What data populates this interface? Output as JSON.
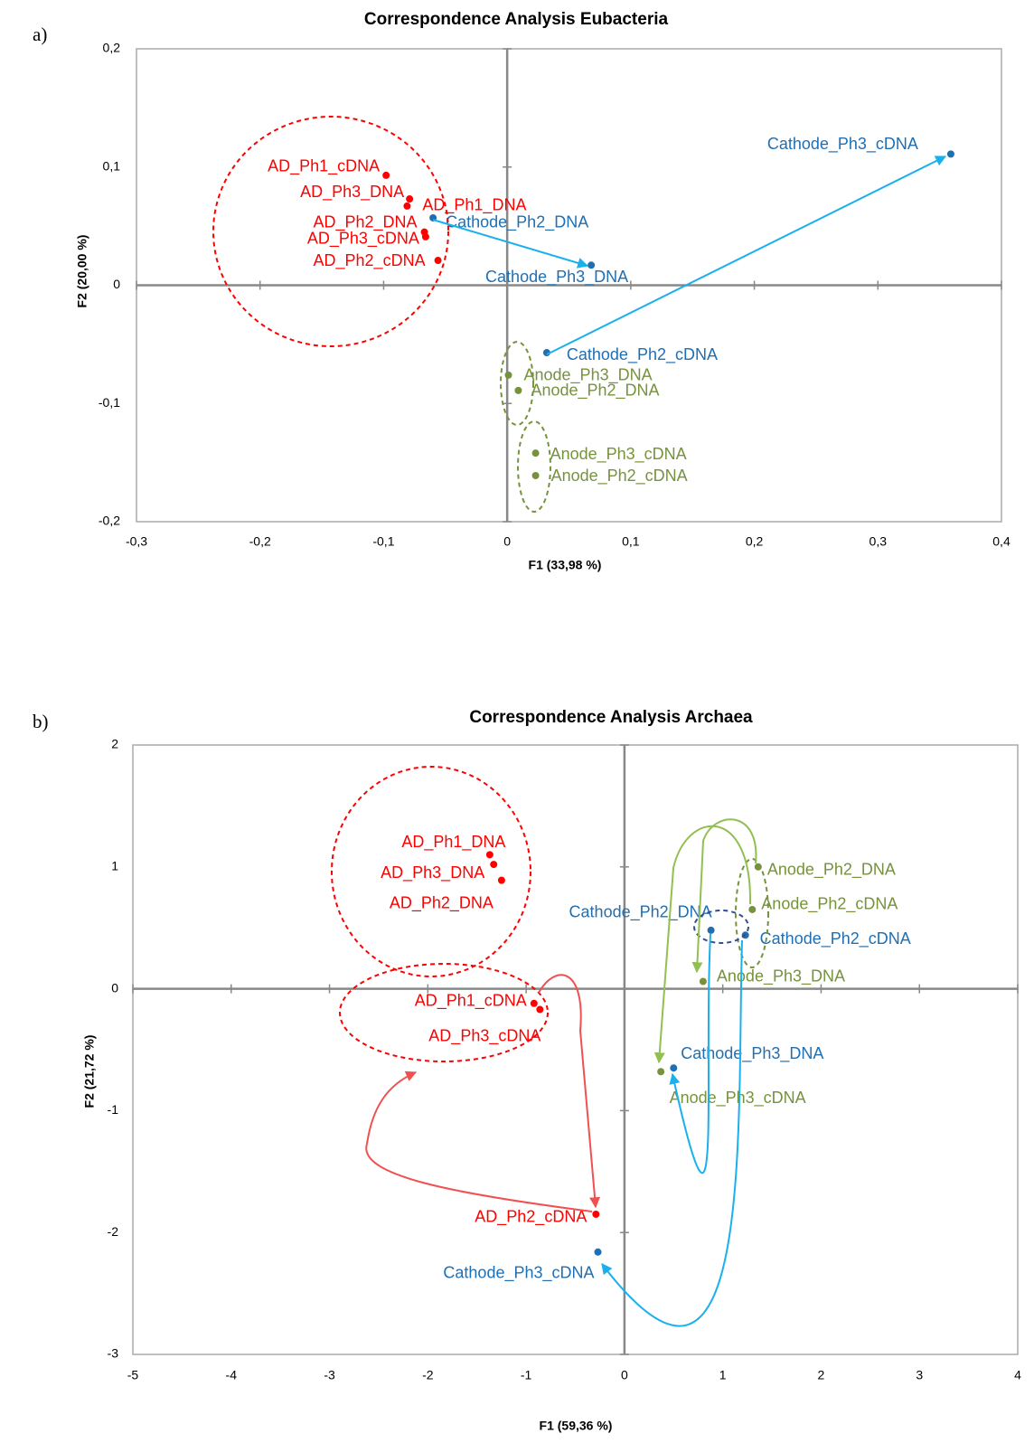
{
  "chart_data": [
    {
      "type": "scatter",
      "panel_label": "a)",
      "title": "Correspondence Analysis Eubacteria",
      "x_label": "F1 (33,98 %)",
      "y_label": "F2 (20,00 %)",
      "xlim": [
        -0.3,
        0.4
      ],
      "ylim": [
        -0.2,
        0.2
      ],
      "xticks": [
        {
          "value": -0.3,
          "label": "-0,3"
        },
        {
          "value": -0.2,
          "label": "-0,2"
        },
        {
          "value": -0.1,
          "label": "-0,1"
        },
        0,
        {
          "value": 0.1,
          "label": "0,1"
        },
        {
          "value": 0.2,
          "label": "0,2"
        },
        {
          "value": 0.3,
          "label": "0,3"
        },
        {
          "value": 0.4,
          "label": "0,4"
        }
      ],
      "yticks": [
        {
          "value": -0.2,
          "label": "-0,2"
        },
        {
          "value": -0.1,
          "label": "-0,1"
        },
        0,
        {
          "value": 0.1,
          "label": "0,1"
        },
        {
          "value": 0.2,
          "label": "0,2"
        }
      ],
      "series": [
        {
          "color": "#ff0000",
          "point_labels": [
            "AD_Ph1_cDNA",
            "AD_Ph3_DNA",
            "AD_Ph1_DNA",
            "AD_Ph2_DNA",
            "AD_Ph3_cDNA",
            "AD_Ph2_cDNA"
          ],
          "x": [
            -0.098,
            -0.079,
            -0.081,
            -0.067,
            -0.066,
            -0.056
          ],
          "y": [
            0.093,
            0.073,
            0.067,
            0.045,
            0.041,
            0.021
          ]
        },
        {
          "color": "#1f6fb2",
          "point_labels": [
            "Cathode_Ph2_DNA",
            "Cathode_Ph3_DNA",
            "Cathode_Ph3_cDNA",
            "Cathode_Ph2_cDNA"
          ],
          "x": [
            -0.06,
            0.068,
            0.359,
            0.032
          ],
          "y": [
            0.057,
            0.017,
            0.111,
            -0.057
          ]
        },
        {
          "color": "#76923c",
          "point_labels": [
            "Anode_Ph3_DNA",
            "Anode_Ph2_DNA",
            "Anode_Ph3_cDNA",
            "Anode_Ph2_cDNA"
          ],
          "x": [
            0.001,
            0.009,
            0.023,
            0.023
          ],
          "y": [
            -0.076,
            -0.089,
            -0.142,
            -0.161
          ]
        }
      ]
    },
    {
      "type": "scatter",
      "panel_label": "b)",
      "title": "Correspondence Analysis Archaea",
      "x_label": "F1 (59,36 %)",
      "y_label": "F2 (21,72 %)",
      "xlim": [
        -5,
        4
      ],
      "ylim": [
        -3,
        2
      ],
      "xticks": [
        -5,
        -4,
        -3,
        -2,
        -1,
        0,
        1,
        2,
        3,
        4
      ],
      "yticks": [
        -3,
        -2,
        -1,
        0,
        1,
        2
      ],
      "series": [
        {
          "color": "#ff0000",
          "point_labels": [
            "AD_Ph1_DNA",
            "AD_Ph3_DNA",
            "AD_Ph2_DNA",
            "AD_Ph1_cDNA",
            "AD_Ph3_cDNA",
            "AD_Ph2_cDNA"
          ],
          "x": [
            -1.37,
            -1.33,
            -1.25,
            -0.92,
            -0.86,
            -0.29
          ],
          "y": [
            1.1,
            1.02,
            0.89,
            -0.12,
            -0.17,
            -1.85
          ]
        },
        {
          "color": "#1f6fb2",
          "point_labels": [
            "Cathode_Ph2_DNA",
            "Cathode_Ph2_cDNA",
            "Cathode_Ph3_DNA",
            "Cathode_Ph3_cDNA"
          ],
          "x": [
            0.88,
            1.23,
            0.5,
            -0.27
          ],
          "y": [
            0.48,
            0.44,
            -0.65,
            -2.16
          ]
        },
        {
          "color": "#76923c",
          "point_labels": [
            "Anode_Ph2_DNA",
            "Anode_Ph2_cDNA",
            "Anode_Ph3_DNA",
            "Anode_Ph3_cDNA"
          ],
          "x": [
            1.36,
            1.3,
            0.8,
            0.37
          ],
          "y": [
            1.0,
            0.65,
            0.06,
            -0.68
          ]
        }
      ]
    }
  ]
}
